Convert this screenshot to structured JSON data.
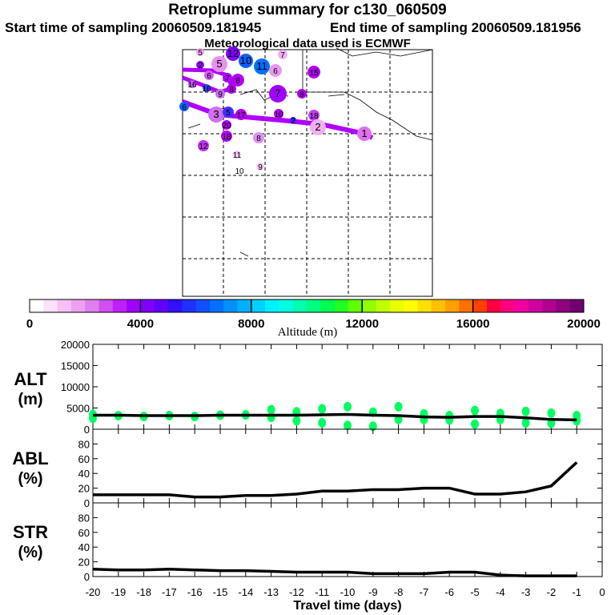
{
  "header": {
    "title": "Retroplume summary for c130_060509",
    "start": "Start time of sampling 20060509.181945",
    "end": "End time of sampling 20060509.181956",
    "met": "Meteorological data used is ECMWF"
  },
  "map": {
    "points": [
      {
        "label": "5",
        "color": "#f0a8f0"
      },
      {
        "label": "12",
        "color": "#8000ff"
      },
      {
        "label": "10",
        "color": "#1060ff"
      },
      {
        "label": "11",
        "color": "#0070ff"
      },
      {
        "label": "7",
        "color": "#f0b0f0"
      },
      {
        "label": "5",
        "color": "#e890f0"
      },
      {
        "label": "2",
        "color": "#9000ff"
      },
      {
        "label": "6",
        "color": "#d060f0"
      },
      {
        "label": "7",
        "color": "#b000ff"
      },
      {
        "label": "6",
        "color": "#b000f0"
      },
      {
        "label": "6",
        "color": "#e898f0"
      },
      {
        "label": "15",
        "color": "#b000f0"
      },
      {
        "label": "16",
        "color": "#c050f0"
      },
      {
        "label": "16",
        "color": "#3040ff"
      },
      {
        "label": "9",
        "color": "#c070f0"
      },
      {
        "label": "8",
        "color": "#b000f0"
      },
      {
        "label": "7",
        "color": "#a000ff"
      },
      {
        "label": "8",
        "color": "#b000f0"
      },
      {
        "label": "6",
        "color": "#1060ff"
      },
      {
        "label": "3",
        "color": "#d070f0"
      },
      {
        "label": "5",
        "color": "#4030ff"
      },
      {
        "label": "17",
        "color": "#b000f0"
      },
      {
        "label": "20",
        "color": "#b000f0"
      },
      {
        "label": "18",
        "color": "#b000f0"
      },
      {
        "label": "10",
        "color": "#b000f0"
      },
      {
        "label": "2",
        "color": "#4020ff"
      },
      {
        "label": "18",
        "color": "#c040f0"
      },
      {
        "label": "2",
        "color": "#f0b0f0"
      },
      {
        "label": "1",
        "color": "#e070f0"
      },
      {
        "label": "8",
        "color": "#e090f0"
      },
      {
        "label": "12",
        "color": "#c030f0"
      },
      {
        "label": "11",
        "color": "#f4c8f4"
      },
      {
        "label": "9",
        "color": "#f4c8f4"
      },
      {
        "label": "10",
        "color": "#ffffff"
      }
    ],
    "trajectory_color": "#b000ff"
  },
  "colorbar": {
    "ticks": [
      "0",
      "4000",
      "8000",
      "12000",
      "16000",
      "20000"
    ],
    "label": "Altitude (m)",
    "colors": [
      "#ffffff",
      "#fce0fc",
      "#f6c0f6",
      "#f0a0f0",
      "#e080f0",
      "#d050f0",
      "#c020f8",
      "#a000ff",
      "#8000ff",
      "#6000ff",
      "#3010ff",
      "#2030ff",
      "#1050ff",
      "#0070ff",
      "#0090ff",
      "#00b0ff",
      "#00d0ff",
      "#00f0ff",
      "#00ffe0",
      "#00ffb0",
      "#00ff80",
      "#00ff50",
      "#20ff20",
      "#60ff00",
      "#90ff00",
      "#c0ff00",
      "#e8ff00",
      "#ffff00",
      "#ffe000",
      "#ffc000",
      "#ffa000",
      "#ff7000",
      "#ff4000",
      "#ff0040",
      "#ff0080",
      "#f000a0",
      "#d000a0",
      "#b00090",
      "#900080",
      "#700070"
    ]
  },
  "chart_data": [
    {
      "type": "line",
      "panel": "ALT",
      "ylabel": "ALT (m)",
      "ylim": [
        0,
        20000
      ],
      "yticks": [
        "0",
        "5000",
        "10000",
        "15000",
        "20000"
      ],
      "x": [
        -20,
        -19,
        -18,
        -17,
        -16,
        -15,
        -14,
        -13,
        -12,
        -11,
        -10,
        -9,
        -8,
        -7,
        -6,
        -5,
        -4,
        -3,
        -2,
        -1
      ],
      "values": [
        3300,
        3300,
        3200,
        3200,
        3200,
        3300,
        3300,
        3300,
        3300,
        3400,
        3500,
        3300,
        3200,
        2900,
        2800,
        3000,
        3000,
        2700,
        2300,
        2200
      ],
      "scatter_color": "#00ff60",
      "scatter": [
        [
          -20,
          3500
        ],
        [
          -20,
          2600
        ],
        [
          -19,
          3200
        ],
        [
          -18,
          3000
        ],
        [
          -17,
          3200
        ],
        [
          -16,
          3000
        ],
        [
          -15,
          3300
        ],
        [
          -14,
          3400
        ],
        [
          -13,
          4600
        ],
        [
          -13,
          2800
        ],
        [
          -12,
          4100
        ],
        [
          -12,
          2000
        ],
        [
          -11,
          4800
        ],
        [
          -11,
          1500
        ],
        [
          -10,
          5300
        ],
        [
          -10,
          900
        ],
        [
          -9,
          4000
        ],
        [
          -9,
          700
        ],
        [
          -8,
          5300
        ],
        [
          -8,
          2300
        ],
        [
          -7,
          3600
        ],
        [
          -7,
          2300
        ],
        [
          -6,
          3200
        ],
        [
          -6,
          2200
        ],
        [
          -5,
          4400
        ],
        [
          -5,
          1200
        ],
        [
          -4,
          3700
        ],
        [
          -4,
          2300
        ],
        [
          -3,
          4200
        ],
        [
          -3,
          1500
        ],
        [
          -2,
          3800
        ],
        [
          -2,
          1400
        ],
        [
          -1,
          3200
        ],
        [
          -1,
          2000
        ]
      ]
    },
    {
      "type": "line",
      "panel": "ABL",
      "ylabel": "ABL (%)",
      "ylim": [
        0,
        100
      ],
      "yticks": [
        "0",
        "20",
        "40",
        "60",
        "80"
      ],
      "x": [
        -20,
        -19,
        -18,
        -17,
        -16,
        -15,
        -14,
        -13,
        -12,
        -11,
        -10,
        -9,
        -8,
        -7,
        -6,
        -5,
        -4,
        -3,
        -2,
        -1
      ],
      "values": [
        11,
        11,
        11,
        11,
        8,
        8,
        10,
        10,
        12,
        16,
        16,
        18,
        18,
        20,
        20,
        12,
        12,
        15,
        23,
        55
      ]
    },
    {
      "type": "line",
      "panel": "STR",
      "ylabel": "STR (%)",
      "ylim": [
        0,
        100
      ],
      "yticks": [
        "0",
        "20",
        "40",
        "60",
        "80"
      ],
      "x": [
        -20,
        -19,
        -18,
        -17,
        -16,
        -15,
        -14,
        -13,
        -12,
        -11,
        -10,
        -9,
        -8,
        -7,
        -6,
        -5,
        -4,
        -3,
        -2,
        -1
      ],
      "values": [
        10,
        9,
        9,
        10,
        9,
        8,
        8,
        7,
        6,
        6,
        6,
        4,
        4,
        4,
        6,
        6,
        2,
        1,
        1,
        1
      ]
    }
  ],
  "xaxis": {
    "label": "Travel time (days)",
    "ticks": [
      "-20",
      "-19",
      "-18",
      "-17",
      "-16",
      "-15",
      "-14",
      "-13",
      "-12",
      "-11",
      "-10",
      "-9",
      "-8",
      "-7",
      "-6",
      "-5",
      "-4",
      "-3",
      "-2",
      "-1",
      "0"
    ]
  },
  "panel_labels": [
    [
      "ALT",
      "(m)"
    ],
    [
      "ABL",
      "(%)"
    ],
    [
      "STR",
      "(%)"
    ]
  ]
}
